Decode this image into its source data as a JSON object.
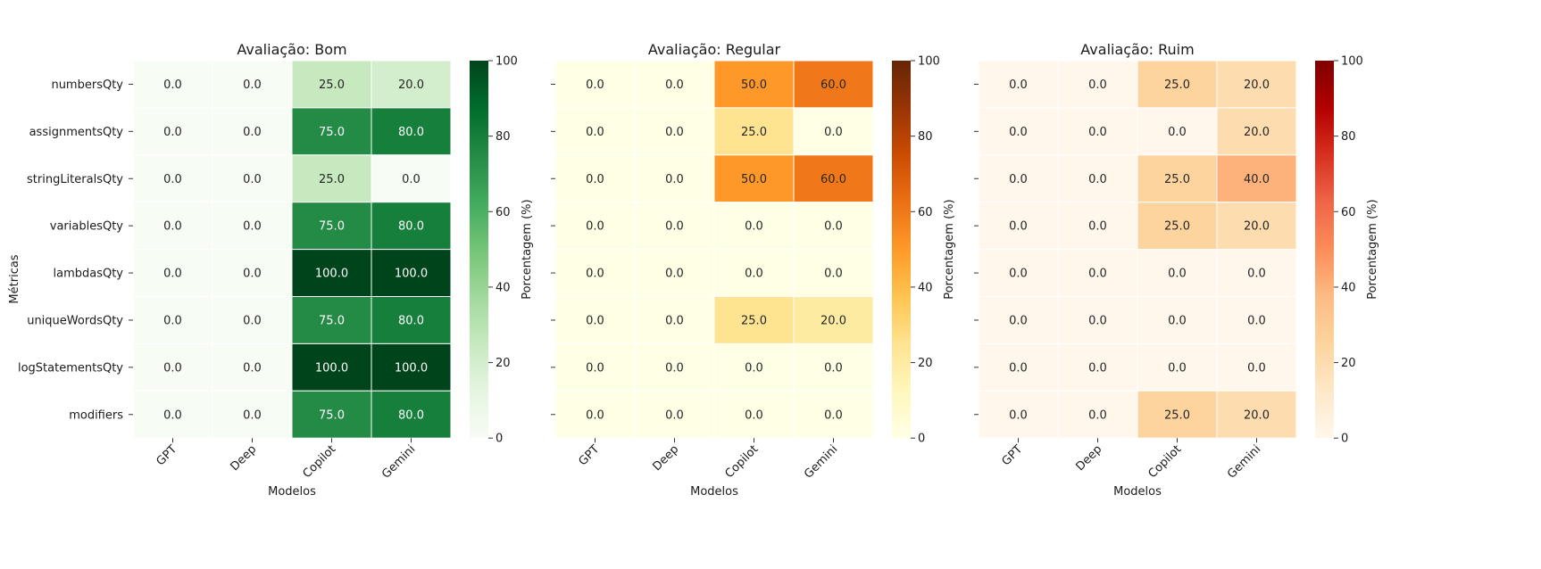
{
  "figure": {
    "ylabel": "Métricas",
    "xlabel": "Modelos",
    "colorbar_label": "Porcentagem (%)"
  },
  "chart_data": [
    {
      "type": "heatmap",
      "title": "Avaliação: Bom",
      "xlabel": "Modelos",
      "ylabel": "Métricas",
      "colormap": "Greens",
      "vmin": 0,
      "vmax": 100,
      "colorbar_ticks": [
        "0",
        "20",
        "40",
        "60",
        "80",
        "100"
      ],
      "colorbar_label": "Porcentagem (%)",
      "columns": [
        "GPT",
        "Deep",
        "Copilot",
        "Gemini"
      ],
      "rows": [
        "numbersQty",
        "assignmentsQty",
        "stringLiteralsQty",
        "variablesQty",
        "lambdasQty",
        "uniqueWordsQty",
        "logStatementsQty",
        "modifiers"
      ],
      "values": [
        [
          0.0,
          0.0,
          25.0,
          20.0
        ],
        [
          0.0,
          0.0,
          75.0,
          80.0
        ],
        [
          0.0,
          0.0,
          25.0,
          0.0
        ],
        [
          0.0,
          0.0,
          75.0,
          80.0
        ],
        [
          0.0,
          0.0,
          100.0,
          100.0
        ],
        [
          0.0,
          0.0,
          75.0,
          80.0
        ],
        [
          0.0,
          0.0,
          100.0,
          100.0
        ],
        [
          0.0,
          0.0,
          75.0,
          80.0
        ]
      ]
    },
    {
      "type": "heatmap",
      "title": "Avaliação: Regular",
      "xlabel": "Modelos",
      "colormap": "YlOrBr",
      "vmin": 0,
      "vmax": 100,
      "colorbar_ticks": [
        "0",
        "20",
        "40",
        "60",
        "80",
        "100"
      ],
      "colorbar_label": "Porcentagem (%)",
      "columns": [
        "GPT",
        "Deep",
        "Copilot",
        "Gemini"
      ],
      "rows": [
        "numbersQty",
        "assignmentsQty",
        "stringLiteralsQty",
        "variablesQty",
        "lambdasQty",
        "uniqueWordsQty",
        "logStatementsQty",
        "modifiers"
      ],
      "values": [
        [
          0.0,
          0.0,
          50.0,
          60.0
        ],
        [
          0.0,
          0.0,
          25.0,
          0.0
        ],
        [
          0.0,
          0.0,
          50.0,
          60.0
        ],
        [
          0.0,
          0.0,
          0.0,
          0.0
        ],
        [
          0.0,
          0.0,
          0.0,
          0.0
        ],
        [
          0.0,
          0.0,
          25.0,
          20.0
        ],
        [
          0.0,
          0.0,
          0.0,
          0.0
        ],
        [
          0.0,
          0.0,
          0.0,
          0.0
        ]
      ]
    },
    {
      "type": "heatmap",
      "title": "Avaliação: Ruim",
      "xlabel": "Modelos",
      "colormap": "OrRd",
      "vmin": 0,
      "vmax": 100,
      "colorbar_ticks": [
        "0",
        "20",
        "40",
        "60",
        "80",
        "100"
      ],
      "colorbar_label": "Porcentagem (%)",
      "columns": [
        "GPT",
        "Deep",
        "Copilot",
        "Gemini"
      ],
      "rows": [
        "numbersQty",
        "assignmentsQty",
        "stringLiteralsQty",
        "variablesQty",
        "lambdasQty",
        "uniqueWordsQty",
        "logStatementsQty",
        "modifiers"
      ],
      "values": [
        [
          0.0,
          0.0,
          25.0,
          20.0
        ],
        [
          0.0,
          0.0,
          0.0,
          20.0
        ],
        [
          0.0,
          0.0,
          25.0,
          40.0
        ],
        [
          0.0,
          0.0,
          25.0,
          20.0
        ],
        [
          0.0,
          0.0,
          0.0,
          0.0
        ],
        [
          0.0,
          0.0,
          0.0,
          0.0
        ],
        [
          0.0,
          0.0,
          0.0,
          0.0
        ],
        [
          0.0,
          0.0,
          25.0,
          20.0
        ]
      ]
    }
  ]
}
